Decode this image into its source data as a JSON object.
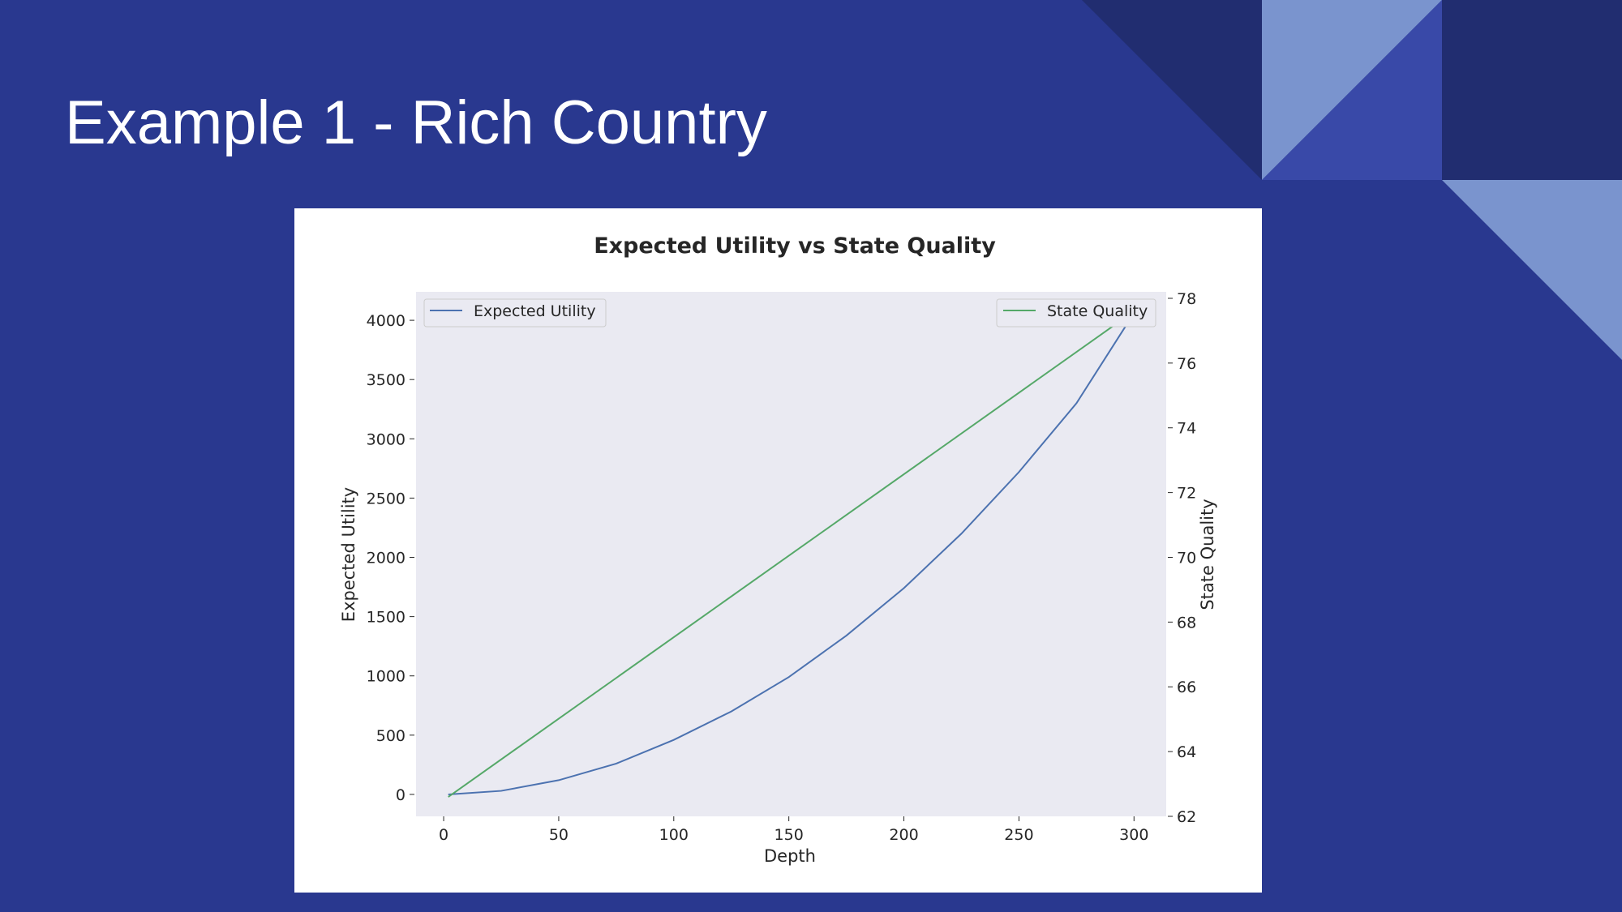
{
  "slide": {
    "title": "Example 1 - Rich Country"
  },
  "colors": {
    "background": "#29388f",
    "deco_dark": "#212d70",
    "deco_light": "#7a94ce",
    "deco_mid": "#3949a8",
    "plot_bg": "#eaeaf2",
    "utility_line": "#4c72b0",
    "quality_line": "#55a868"
  },
  "chart_data": {
    "type": "line",
    "title": "Expected Utility vs State Quality",
    "xlabel": "Depth",
    "ylabel": "Expected Utility",
    "y2label": "State Quality",
    "xlim": [
      -12,
      314
    ],
    "ylim": [
      -185,
      4240
    ],
    "y2lim": [
      62,
      78.2
    ],
    "xticks": [
      0,
      50,
      100,
      150,
      200,
      250,
      300
    ],
    "yticks": [
      0,
      500,
      1000,
      1500,
      2000,
      2500,
      3000,
      3500,
      4000
    ],
    "y2ticks": [
      62,
      64,
      66,
      68,
      70,
      72,
      74,
      76,
      78
    ],
    "grid": false,
    "series": [
      {
        "name": "Expected Utility",
        "axis": "left",
        "x": [
          2,
          25,
          50,
          75,
          100,
          125,
          150,
          175,
          200,
          225,
          250,
          275,
          298
        ],
        "y": [
          0,
          30,
          120,
          260,
          460,
          700,
          990,
          1340,
          1740,
          2200,
          2720,
          3300,
          4000
        ]
      },
      {
        "name": "State Quality",
        "axis": "right",
        "x": [
          2,
          298
        ],
        "y": [
          62.6,
          77.5
        ]
      }
    ],
    "legends": [
      {
        "series": "Expected Utility",
        "placement": "upper-left"
      },
      {
        "series": "State Quality",
        "placement": "upper-right"
      }
    ]
  }
}
